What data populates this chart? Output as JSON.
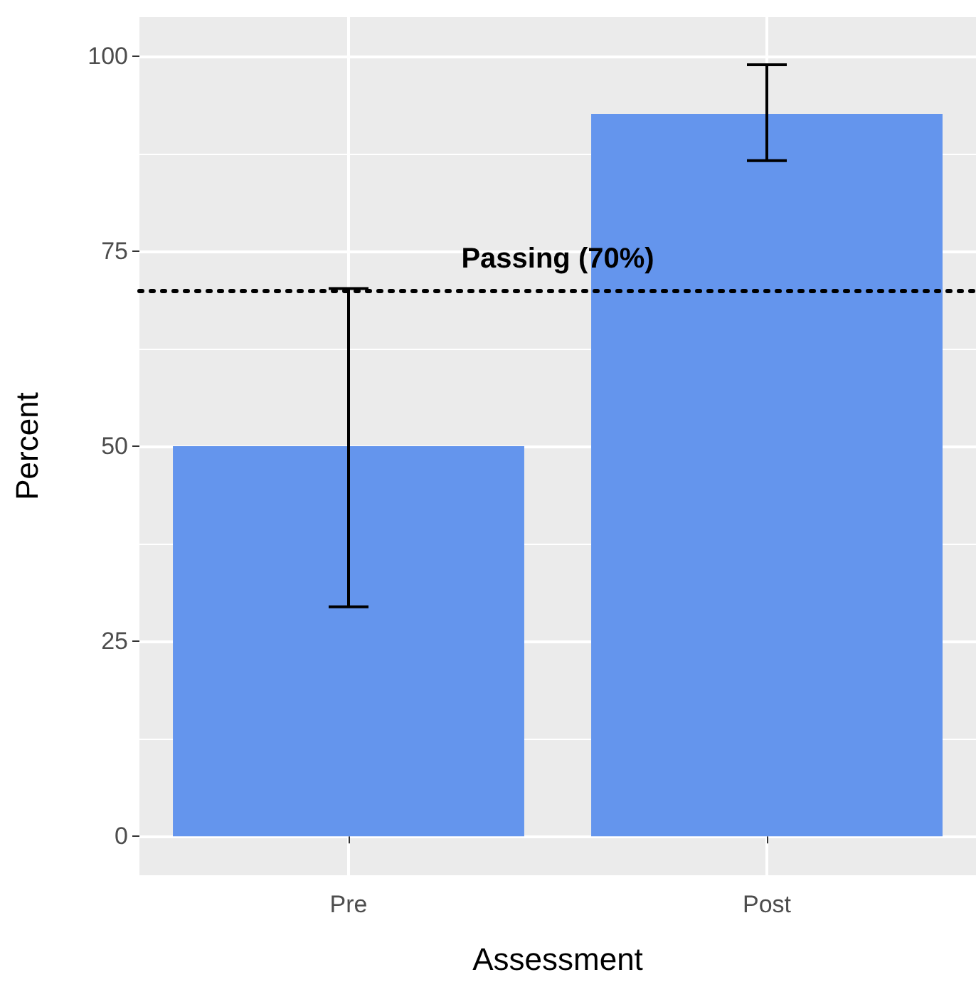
{
  "chart_data": {
    "type": "bar",
    "xlabel": "Assessment",
    "ylabel": "Percent",
    "categories": [
      "Pre",
      "Post"
    ],
    "values": [
      50,
      92.6
    ],
    "errors": [
      [
        29.4,
        70.2
      ],
      [
        86.6,
        98.9
      ]
    ],
    "color": "#6495ed",
    "ylim": [
      -5,
      105
    ],
    "yticks": [
      0,
      25,
      50,
      75,
      100
    ],
    "grid": true,
    "ref_lines": [
      {
        "axis": "y",
        "value": 70,
        "label": "Passing (70%)",
        "color": "#000000",
        "line_style": "dotted"
      }
    ]
  }
}
